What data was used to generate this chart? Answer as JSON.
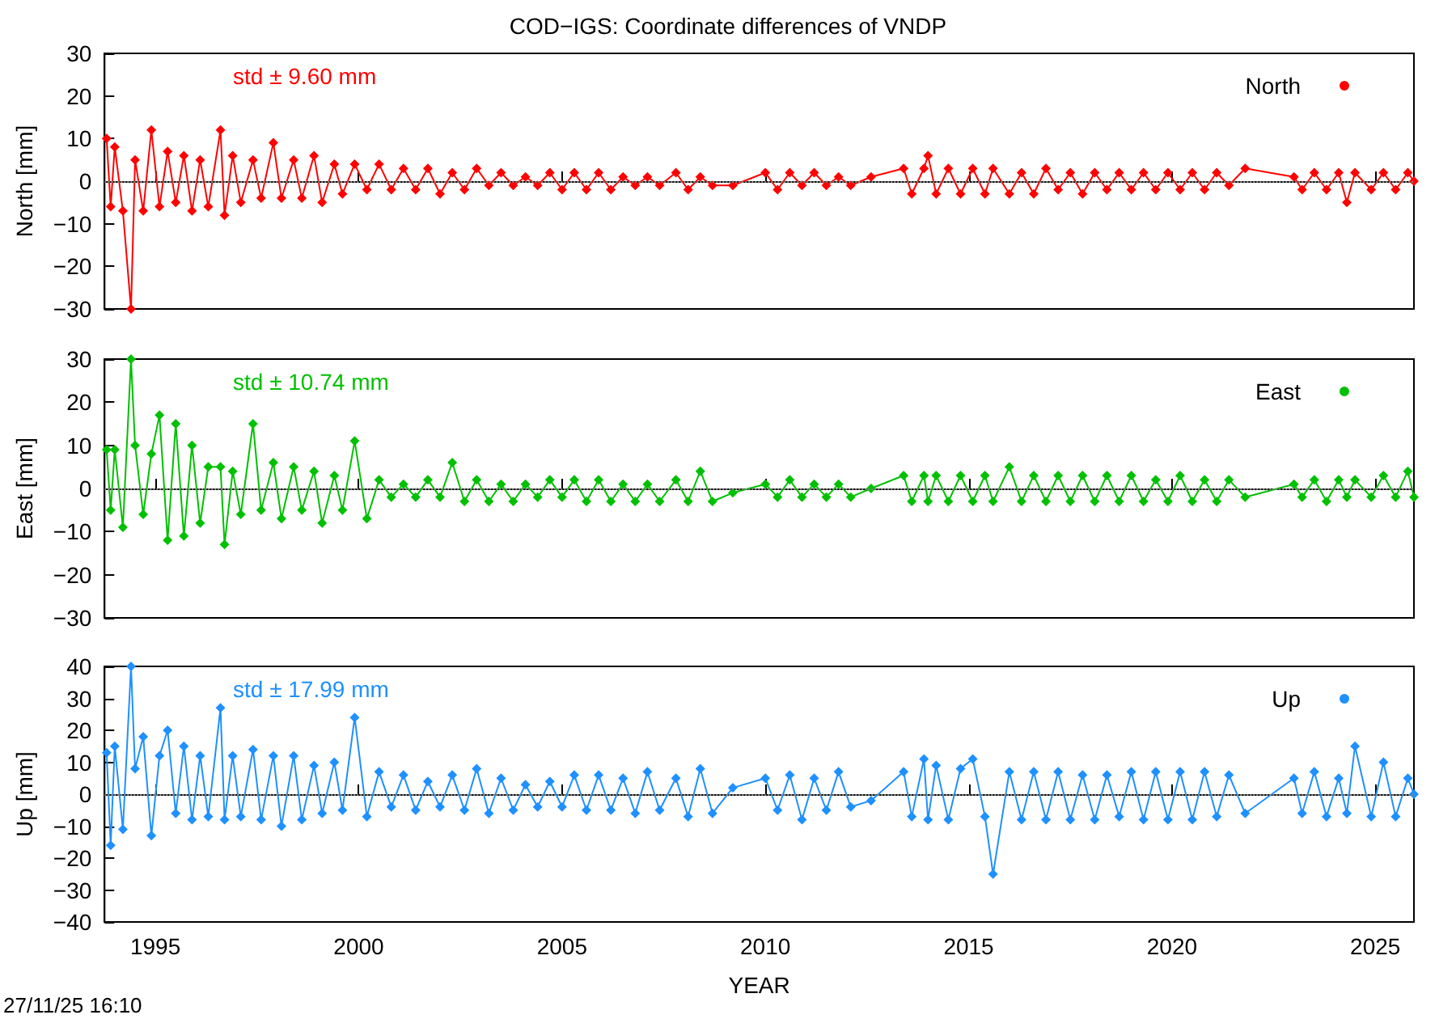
{
  "chart_data": [
    {
      "type": "line",
      "title": "COD−IGS: Coordinate differences of VNDP",
      "ylabel": "North [mm]",
      "annotations": [
        "std ± 9.60 mm"
      ],
      "x": [
        1993.8,
        1993.9,
        1994.0,
        1994.2,
        1994.4,
        1994.5,
        1994.7,
        1994.9,
        1995.1,
        1995.3,
        1995.5,
        1995.7,
        1995.9,
        1996.1,
        1996.3,
        1996.6,
        1996.7,
        1996.9,
        1997.1,
        1997.4,
        1997.6,
        1997.9,
        1998.1,
        1998.4,
        1998.6,
        1998.9,
        1999.1,
        1999.4,
        1999.6,
        1999.9,
        2000.2,
        2000.5,
        2000.8,
        2001.1,
        2001.4,
        2001.7,
        2002.0,
        2002.3,
        2002.6,
        2002.9,
        2003.2,
        2003.5,
        2003.8,
        2004.1,
        2004.4,
        2004.7,
        2005.0,
        2005.3,
        2005.6,
        2005.9,
        2006.2,
        2006.5,
        2006.8,
        2007.1,
        2007.4,
        2007.8,
        2008.1,
        2008.4,
        2008.7,
        2009.2,
        2010.0,
        2010.3,
        2010.6,
        2010.9,
        2011.2,
        2011.5,
        2011.8,
        2012.1,
        2012.6,
        2013.4,
        2013.6,
        2013.9,
        2014.0,
        2014.2,
        2014.5,
        2014.8,
        2015.1,
        2015.4,
        2015.6,
        2016.0,
        2016.3,
        2016.6,
        2016.9,
        2017.2,
        2017.5,
        2017.8,
        2018.1,
        2018.4,
        2018.7,
        2019.0,
        2019.3,
        2019.6,
        2019.9,
        2020.2,
        2020.5,
        2020.8,
        2021.1,
        2021.4,
        2021.8,
        2023.0,
        2023.2,
        2023.5,
        2023.8,
        2024.1,
        2024.3,
        2024.5,
        2024.9,
        2025.2,
        2025.5,
        2025.8,
        2025.95
      ],
      "series": [
        {
          "name": "North",
          "color": "#ff0000",
          "values": [
            10,
            -6,
            8,
            -7,
            -30,
            5,
            -7,
            12,
            -6,
            7,
            -5,
            6,
            -7,
            5,
            -6,
            12,
            -8,
            6,
            -5,
            5,
            -4,
            9,
            -4,
            5,
            -4,
            6,
            -5,
            4,
            -3,
            4,
            -2,
            4,
            -2,
            3,
            -2,
            3,
            -3,
            2,
            -2,
            3,
            -1,
            2,
            -1,
            1,
            -1,
            2,
            -2,
            2,
            -2,
            2,
            -2,
            1,
            -1,
            1,
            -1,
            2,
            -2,
            1,
            -1,
            -1,
            2,
            -2,
            2,
            -1,
            2,
            -1,
            1,
            -1,
            1,
            3,
            -3,
            3,
            6,
            -3,
            3,
            -3,
            3,
            -3,
            3,
            -3,
            2,
            -3,
            3,
            -2,
            2,
            -3,
            2,
            -2,
            2,
            -2,
            2,
            -2,
            2,
            -2,
            2,
            -2,
            2,
            -1,
            3,
            1,
            -2,
            2,
            -2,
            2,
            -5,
            2,
            -2,
            2,
            -2,
            2,
            0
          ]
        }
      ],
      "xlim": [
        1993.75,
        2025.95
      ],
      "xticks": [
        1995,
        2000,
        2005,
        2010,
        2015,
        2020,
        2025
      ],
      "ylim": [
        -30,
        30
      ],
      "yticks": [
        -30,
        -20,
        -10,
        0,
        10,
        20,
        30
      ],
      "ref_lines": [
        {
          "axis": "y",
          "value": 0,
          "color": "#808080",
          "line_style": "dotted"
        }
      ],
      "tick_labels": "y",
      "legend": "top right",
      "marker": "diamond",
      "line_style": "solid"
    },
    {
      "type": "line",
      "ylabel": "East [mm]",
      "annotations": [
        "std ± 10.74 mm"
      ],
      "x": [
        1993.8,
        1993.9,
        1994.0,
        1994.2,
        1994.4,
        1994.5,
        1994.7,
        1994.9,
        1995.1,
        1995.3,
        1995.5,
        1995.7,
        1995.9,
        1996.1,
        1996.3,
        1996.6,
        1996.7,
        1996.9,
        1997.1,
        1997.4,
        1997.6,
        1997.9,
        1998.1,
        1998.4,
        1998.6,
        1998.9,
        1999.1,
        1999.4,
        1999.6,
        1999.9,
        2000.2,
        2000.5,
        2000.8,
        2001.1,
        2001.4,
        2001.7,
        2002.0,
        2002.3,
        2002.6,
        2002.9,
        2003.2,
        2003.5,
        2003.8,
        2004.1,
        2004.4,
        2004.7,
        2005.0,
        2005.3,
        2005.6,
        2005.9,
        2006.2,
        2006.5,
        2006.8,
        2007.1,
        2007.4,
        2007.8,
        2008.1,
        2008.4,
        2008.7,
        2009.2,
        2010.0,
        2010.3,
        2010.6,
        2010.9,
        2011.2,
        2011.5,
        2011.8,
        2012.1,
        2012.6,
        2013.4,
        2013.6,
        2013.9,
        2014.0,
        2014.2,
        2014.5,
        2014.8,
        2015.1,
        2015.4,
        2015.6,
        2016.0,
        2016.3,
        2016.6,
        2016.9,
        2017.2,
        2017.5,
        2017.8,
        2018.1,
        2018.4,
        2018.7,
        2019.0,
        2019.3,
        2019.6,
        2019.9,
        2020.2,
        2020.5,
        2020.8,
        2021.1,
        2021.4,
        2021.8,
        2023.0,
        2023.2,
        2023.5,
        2023.8,
        2024.1,
        2024.3,
        2024.5,
        2024.9,
        2025.2,
        2025.5,
        2025.8,
        2025.95
      ],
      "series": [
        {
          "name": "East",
          "color": "#00c000",
          "values": [
            9,
            -5,
            9,
            -9,
            30,
            10,
            -6,
            8,
            17,
            -12,
            15,
            -11,
            10,
            -8,
            5,
            5,
            -13,
            4,
            -6,
            15,
            -5,
            6,
            -7,
            5,
            -5,
            4,
            -8,
            3,
            -5,
            11,
            -7,
            2,
            -2,
            1,
            -2,
            2,
            -2,
            6,
            -3,
            2,
            -3,
            1,
            -3,
            1,
            -2,
            2,
            -2,
            2,
            -3,
            2,
            -3,
            1,
            -3,
            1,
            -3,
            2,
            -3,
            4,
            -3,
            -1,
            1,
            -2,
            2,
            -2,
            1,
            -2,
            1,
            -2,
            0,
            3,
            -3,
            3,
            -3,
            3,
            -3,
            3,
            -3,
            3,
            -3,
            5,
            -3,
            3,
            -3,
            3,
            -3,
            3,
            -3,
            3,
            -3,
            3,
            -3,
            2,
            -3,
            3,
            -3,
            2,
            -3,
            2,
            -2,
            1,
            -2,
            2,
            -3,
            2,
            -2,
            2,
            -2,
            3,
            -2,
            4,
            -2
          ]
        }
      ],
      "xlim": [
        1993.75,
        2025.95
      ],
      "xticks": [
        1995,
        2000,
        2005,
        2010,
        2015,
        2020,
        2025
      ],
      "ylim": [
        -30,
        30
      ],
      "yticks": [
        -30,
        -20,
        -10,
        0,
        10,
        20,
        30
      ],
      "ref_lines": [
        {
          "axis": "y",
          "value": 0,
          "color": "#808080",
          "line_style": "dotted"
        }
      ],
      "tick_labels": "y",
      "legend": "top right",
      "marker": "diamond",
      "line_style": "solid"
    },
    {
      "type": "line",
      "xlabel": "YEAR",
      "ylabel": "Up [mm]",
      "annotations": [
        "std ± 17.99 mm",
        "27/11/25 16:10"
      ],
      "x": [
        1993.8,
        1993.9,
        1994.0,
        1994.2,
        1994.4,
        1994.5,
        1994.7,
        1994.9,
        1995.1,
        1995.3,
        1995.5,
        1995.7,
        1995.9,
        1996.1,
        1996.3,
        1996.6,
        1996.7,
        1996.9,
        1997.1,
        1997.4,
        1997.6,
        1997.9,
        1998.1,
        1998.4,
        1998.6,
        1998.9,
        1999.1,
        1999.4,
        1999.6,
        1999.9,
        2000.2,
        2000.5,
        2000.8,
        2001.1,
        2001.4,
        2001.7,
        2002.0,
        2002.3,
        2002.6,
        2002.9,
        2003.2,
        2003.5,
        2003.8,
        2004.1,
        2004.4,
        2004.7,
        2005.0,
        2005.3,
        2005.6,
        2005.9,
        2006.2,
        2006.5,
        2006.8,
        2007.1,
        2007.4,
        2007.8,
        2008.1,
        2008.4,
        2008.7,
        2009.2,
        2010.0,
        2010.3,
        2010.6,
        2010.9,
        2011.2,
        2011.5,
        2011.8,
        2012.1,
        2012.6,
        2013.4,
        2013.6,
        2013.9,
        2014.0,
        2014.2,
        2014.5,
        2014.8,
        2015.1,
        2015.4,
        2015.6,
        2016.0,
        2016.3,
        2016.6,
        2016.9,
        2017.2,
        2017.5,
        2017.8,
        2018.1,
        2018.4,
        2018.7,
        2019.0,
        2019.3,
        2019.6,
        2019.9,
        2020.2,
        2020.5,
        2020.8,
        2021.1,
        2021.4,
        2021.8,
        2023.0,
        2023.2,
        2023.5,
        2023.8,
        2024.1,
        2024.3,
        2024.5,
        2024.9,
        2025.2,
        2025.5,
        2025.8,
        2025.95
      ],
      "series": [
        {
          "name": "Up",
          "color": "#1e90ff",
          "values": [
            13,
            -16,
            15,
            -11,
            40,
            8,
            18,
            -13,
            12,
            20,
            -6,
            15,
            -8,
            12,
            -7,
            27,
            -8,
            12,
            -7,
            14,
            -8,
            12,
            -10,
            12,
            -8,
            9,
            -6,
            10,
            -5,
            24,
            -7,
            7,
            -4,
            6,
            -5,
            4,
            -4,
            6,
            -5,
            8,
            -6,
            5,
            -5,
            3,
            -4,
            4,
            -4,
            6,
            -5,
            6,
            -5,
            5,
            -6,
            7,
            -5,
            5,
            -7,
            8,
            -6,
            2,
            5,
            -5,
            6,
            -8,
            5,
            -5,
            7,
            -4,
            -2,
            7,
            -7,
            11,
            -8,
            9,
            -8,
            8,
            11,
            -7,
            -25,
            7,
            -8,
            7,
            -8,
            7,
            -8,
            6,
            -8,
            6,
            -7,
            7,
            -8,
            7,
            -8,
            7,
            -8,
            7,
            -7,
            6,
            -6,
            5,
            -6,
            7,
            -7,
            5,
            -6,
            15,
            -7,
            10,
            -7,
            5,
            0
          ]
        }
      ],
      "xlim": [
        1993.75,
        2025.95
      ],
      "xticks": [
        1995,
        2000,
        2005,
        2010,
        2015,
        2020,
        2025
      ],
      "ylim": [
        -40,
        40
      ],
      "yticks": [
        -40,
        -30,
        -20,
        -10,
        0,
        10,
        20,
        30,
        40
      ],
      "ref_lines": [
        {
          "axis": "y",
          "value": 0,
          "color": "#808080",
          "line_style": "dotted"
        }
      ],
      "legend": "top right",
      "marker": "diamond",
      "line_style": "solid"
    }
  ]
}
